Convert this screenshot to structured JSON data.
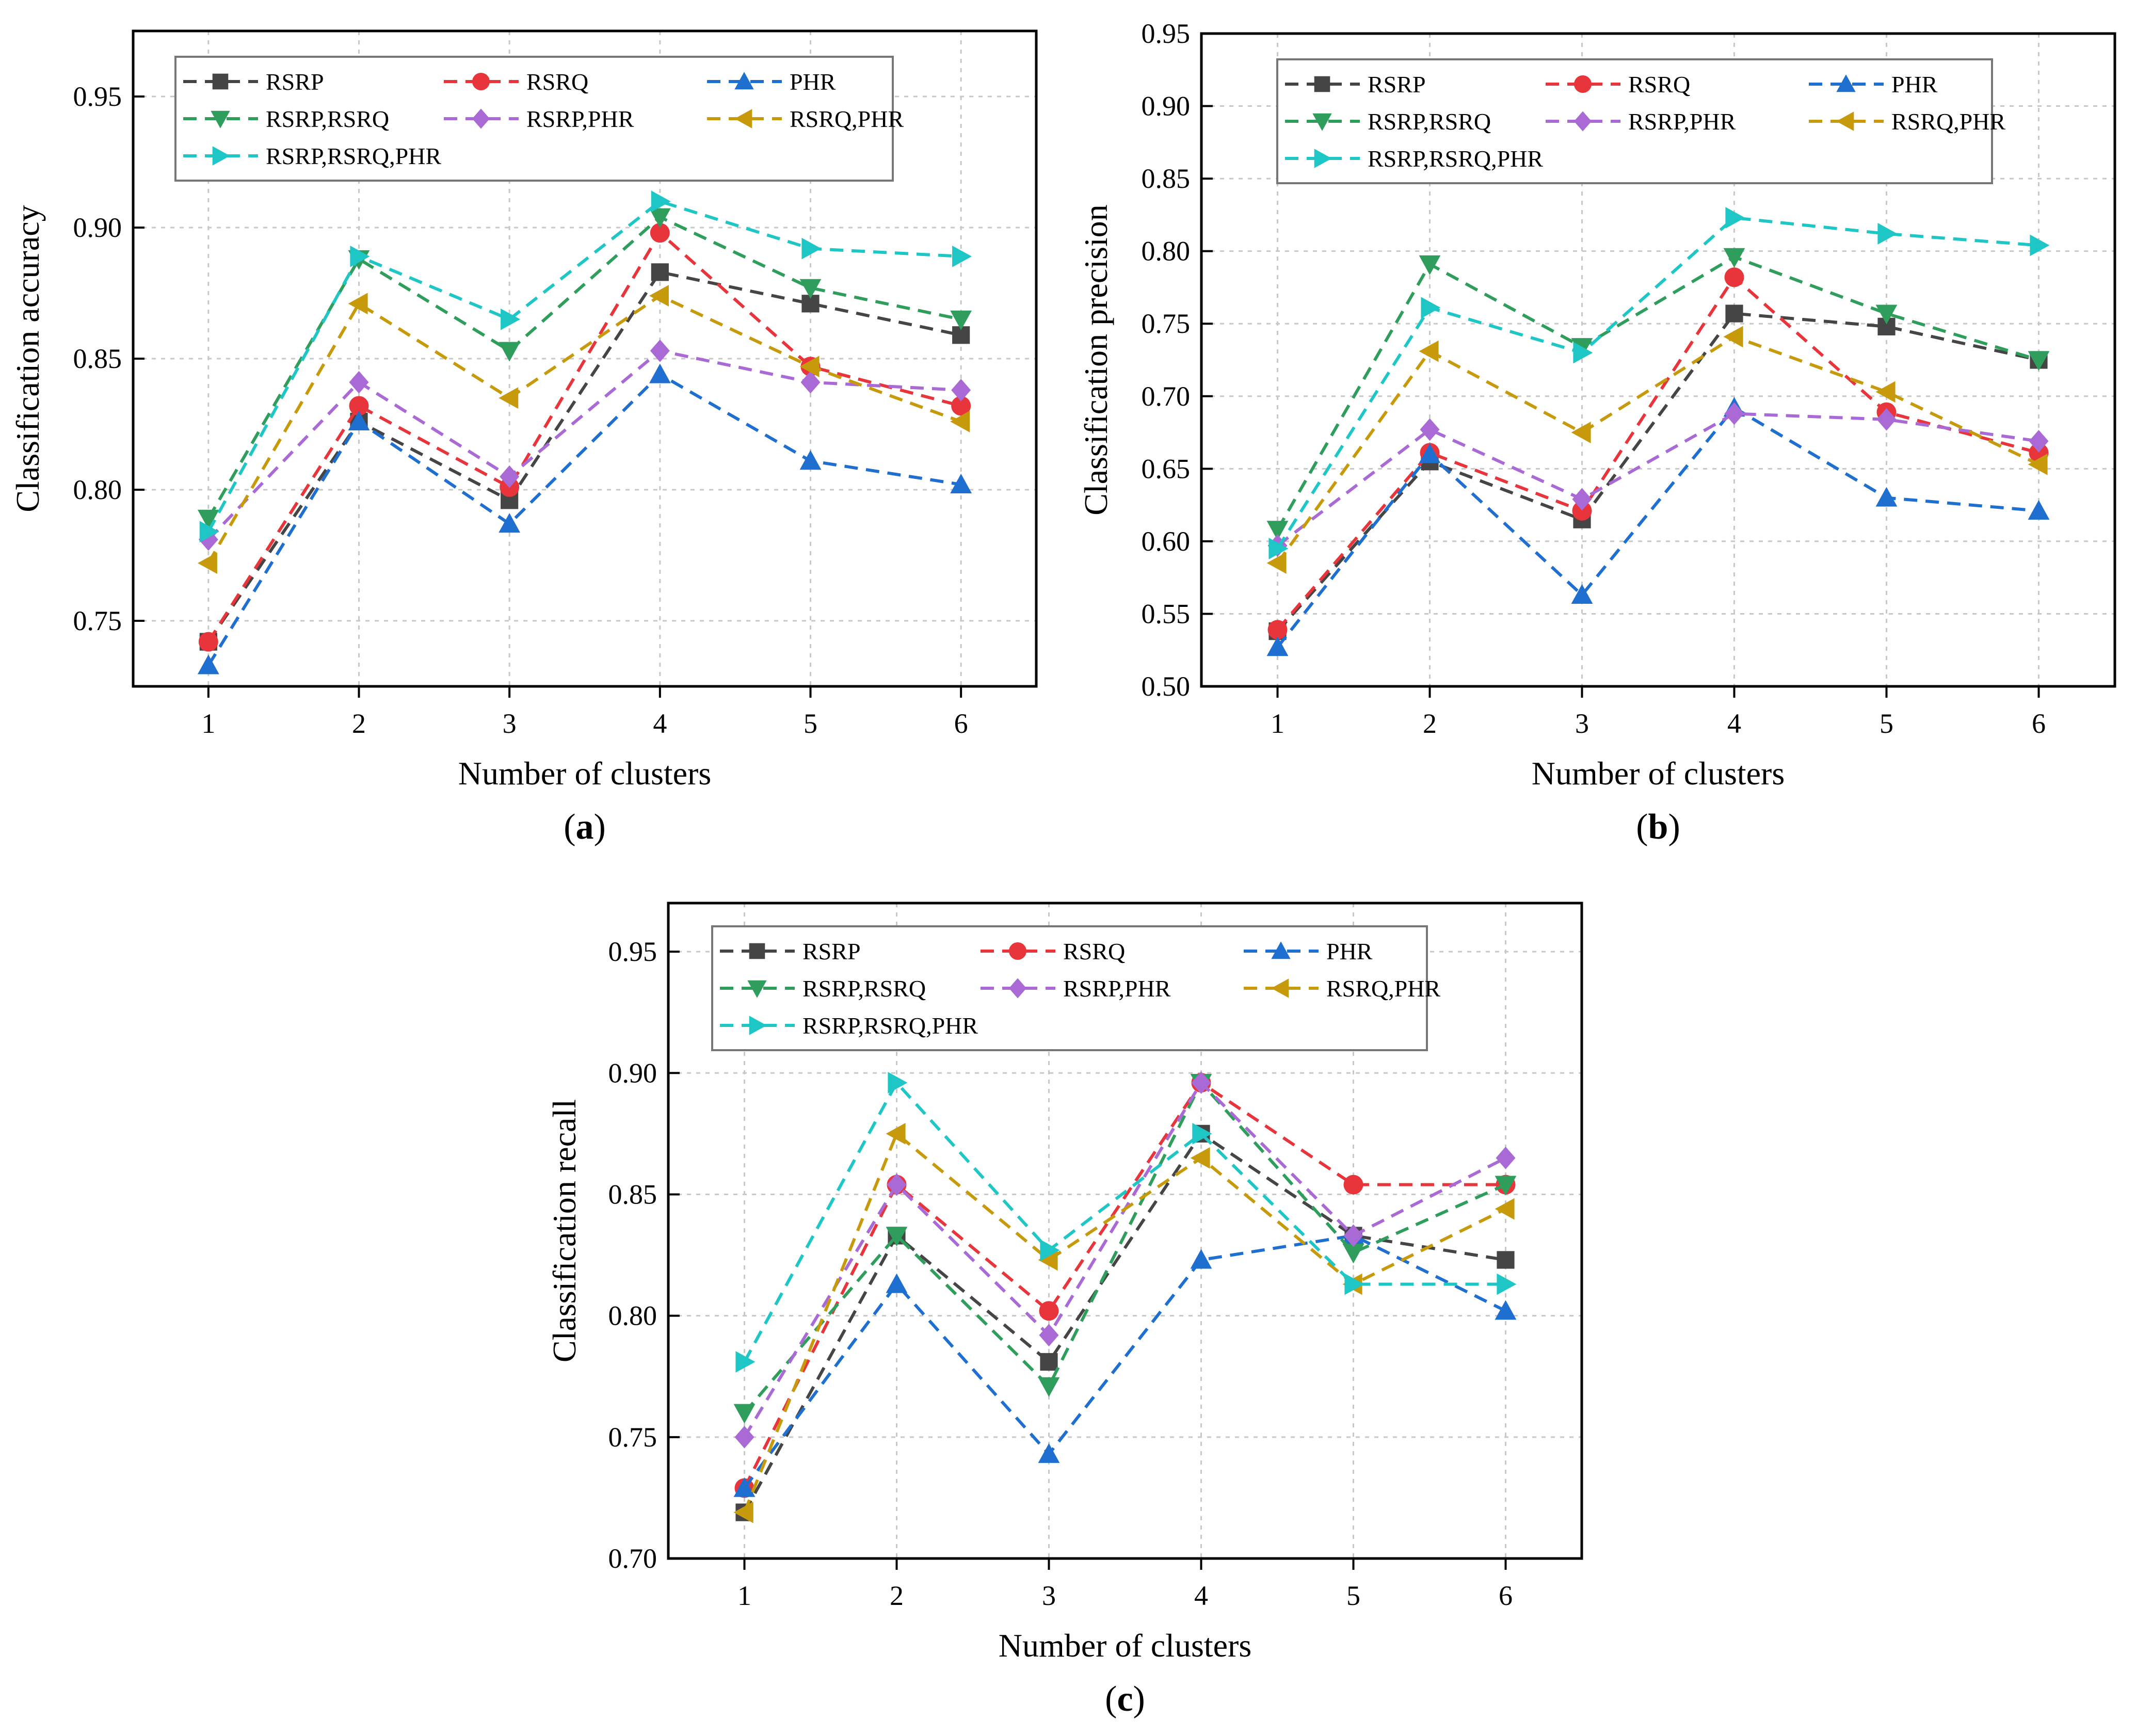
{
  "series_styles": [
    {
      "name": "RSRP",
      "color": "#454545",
      "marker": "square"
    },
    {
      "name": "RSRQ",
      "color": "#e8353b",
      "marker": "circle"
    },
    {
      "name": "PHR",
      "color": "#1f6fd1",
      "marker": "triangle-up"
    },
    {
      "name": "RSRP,RSRQ",
      "color": "#2f9e5c",
      "marker": "triangle-down"
    },
    {
      "name": "RSRP,PHR",
      "color": "#a96ad6",
      "marker": "diamond"
    },
    {
      "name": "RSRQ,PHR",
      "color": "#c79a0b",
      "marker": "triangle-left"
    },
    {
      "name": "RSRP,RSRQ,PHR",
      "color": "#1ec6c6",
      "marker": "triangle-right"
    }
  ],
  "chart_data": [
    {
      "type": "line",
      "caption_letter": "a",
      "title": "",
      "xlabel": "Number of clusters",
      "ylabel": "Classification accuracy",
      "x": [
        1,
        2,
        3,
        4,
        5,
        6
      ],
      "xlim": [
        0.5,
        6.5
      ],
      "ylim": [
        0.725,
        0.975
      ],
      "yticks": [
        "0.75",
        "0.80",
        "0.85",
        "0.90",
        "0.95"
      ],
      "xticks": [
        "1",
        "2",
        "3",
        "4",
        "5",
        "6"
      ],
      "legend": [
        "RSRP",
        "RSRQ",
        "PHR",
        "RSRP,RSRQ",
        "RSRP,PHR",
        "RSRQ,PHR",
        "RSRP,RSRQ,PHR"
      ],
      "series": [
        {
          "name": "RSRP",
          "values": [
            0.742,
            0.826,
            0.796,
            0.883,
            0.871,
            0.859
          ]
        },
        {
          "name": "RSRQ",
          "values": [
            0.742,
            0.832,
            0.801,
            0.898,
            0.847,
            0.832
          ]
        },
        {
          "name": "PHR",
          "values": [
            0.733,
            0.826,
            0.787,
            0.844,
            0.811,
            0.802
          ]
        },
        {
          "name": "RSRP,RSRQ",
          "values": [
            0.789,
            0.888,
            0.853,
            0.904,
            0.877,
            0.865
          ]
        },
        {
          "name": "RSRP,PHR",
          "values": [
            0.781,
            0.841,
            0.805,
            0.853,
            0.841,
            0.838
          ]
        },
        {
          "name": "RSRQ,PHR",
          "values": [
            0.772,
            0.871,
            0.835,
            0.874,
            0.847,
            0.826
          ]
        },
        {
          "name": "RSRP,RSRQ,PHR",
          "values": [
            0.784,
            0.889,
            0.865,
            0.91,
            0.892,
            0.889
          ]
        }
      ]
    },
    {
      "type": "line",
      "caption_letter": "b",
      "title": "",
      "xlabel": "Number of clusters",
      "ylabel": "Classification precision",
      "x": [
        1,
        2,
        3,
        4,
        5,
        6
      ],
      "xlim": [
        0.5,
        6.5
      ],
      "ylim": [
        0.5,
        0.95
      ],
      "yticks": [
        "0.50",
        "0.55",
        "0.60",
        "0.65",
        "0.70",
        "0.75",
        "0.80",
        "0.85",
        "0.90",
        "0.95"
      ],
      "xticks": [
        "1",
        "2",
        "3",
        "4",
        "5",
        "6"
      ],
      "legend": [
        "RSRP",
        "RSRQ",
        "PHR",
        "RSRP,RSRQ",
        "RSRP,PHR",
        "RSRQ,PHR",
        "RSRP,RSRQ,PHR"
      ],
      "series": [
        {
          "name": "RSRP",
          "values": [
            0.538,
            0.655,
            0.615,
            0.757,
            0.748,
            0.725
          ]
        },
        {
          "name": "RSRQ",
          "values": [
            0.539,
            0.661,
            0.621,
            0.782,
            0.689,
            0.661
          ]
        },
        {
          "name": "PHR",
          "values": [
            0.527,
            0.66,
            0.563,
            0.692,
            0.63,
            0.621
          ]
        },
        {
          "name": "RSRP,RSRQ",
          "values": [
            0.608,
            0.791,
            0.734,
            0.796,
            0.757,
            0.725
          ]
        },
        {
          "name": "RSRP,PHR",
          "values": [
            0.597,
            0.677,
            0.629,
            0.688,
            0.684,
            0.669
          ]
        },
        {
          "name": "RSRQ,PHR",
          "values": [
            0.585,
            0.731,
            0.675,
            0.741,
            0.703,
            0.653
          ]
        },
        {
          "name": "RSRP,RSRQ,PHR",
          "values": [
            0.595,
            0.761,
            0.73,
            0.823,
            0.812,
            0.804
          ]
        }
      ]
    },
    {
      "type": "line",
      "caption_letter": "c",
      "title": "",
      "xlabel": "Number of clusters",
      "ylabel": "Classification recall",
      "x": [
        1,
        2,
        3,
        4,
        5,
        6
      ],
      "xlim": [
        0.5,
        6.5
      ],
      "ylim": [
        0.7,
        0.97
      ],
      "yticks": [
        "0.70",
        "0.75",
        "0.80",
        "0.85",
        "0.90",
        "0.95"
      ],
      "xticks": [
        "1",
        "2",
        "3",
        "4",
        "5",
        "6"
      ],
      "legend": [
        "RSRP",
        "RSRQ",
        "PHR",
        "RSRP,RSRQ",
        "RSRP,PHR",
        "RSRQ,PHR",
        "RSRP,RSRQ,PHR"
      ],
      "series": [
        {
          "name": "RSRP",
          "values": [
            0.719,
            0.833,
            0.781,
            0.875,
            0.833,
            0.823
          ]
        },
        {
          "name": "RSRQ",
          "values": [
            0.729,
            0.854,
            0.802,
            0.896,
            0.854,
            0.854
          ]
        },
        {
          "name": "PHR",
          "values": [
            0.729,
            0.813,
            0.743,
            0.823,
            0.833,
            0.802
          ]
        },
        {
          "name": "RSRP,RSRQ",
          "values": [
            0.76,
            0.833,
            0.771,
            0.896,
            0.826,
            0.854
          ]
        },
        {
          "name": "RSRP,PHR",
          "values": [
            0.75,
            0.854,
            0.792,
            0.896,
            0.833,
            0.865
          ]
        },
        {
          "name": "RSRQ,PHR",
          "values": [
            0.719,
            0.875,
            0.823,
            0.865,
            0.813,
            0.844
          ]
        },
        {
          "name": "RSRP,RSRQ,PHR",
          "values": [
            0.781,
            0.896,
            0.827,
            0.875,
            0.813,
            0.813
          ]
        }
      ]
    }
  ]
}
